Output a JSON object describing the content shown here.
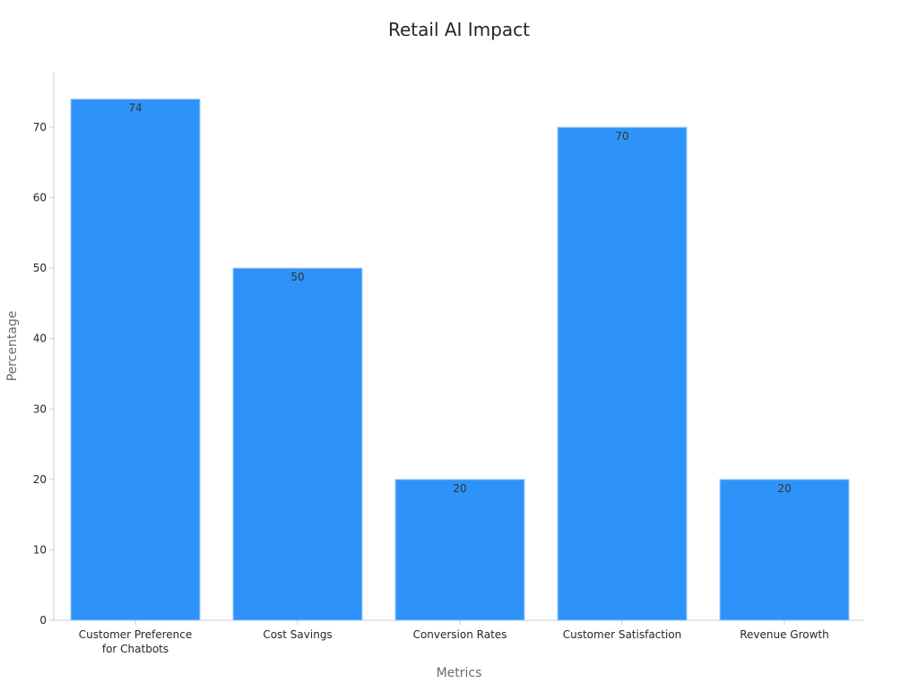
{
  "chart_data": {
    "type": "bar",
    "title": "Retail AI Impact",
    "xlabel": "Metrics",
    "ylabel": "Percentage",
    "categories": [
      [
        "Customer Preference",
        "for Chatbots"
      ],
      [
        "Cost Savings"
      ],
      [
        "Conversion Rates"
      ],
      [
        "Customer Satisfaction"
      ],
      [
        "Revenue Growth"
      ]
    ],
    "values": [
      74,
      50,
      20,
      70,
      20
    ],
    "value_labels": [
      "74",
      "50",
      "20",
      "70",
      "20"
    ],
    "y_ticks": [
      0,
      10,
      20,
      30,
      40,
      50,
      60,
      70
    ],
    "y_tick_labels": [
      "0",
      "10",
      "20",
      "30",
      "40",
      "50",
      "60",
      "70"
    ],
    "ylim": [
      0,
      78
    ],
    "grid": false,
    "legend": "none",
    "colors": {
      "bar": "#2e93f8",
      "bar_edge": "#9fcbf7",
      "axis": "#cccccc",
      "text": "#262626",
      "axis_title": "#6b6b6b"
    }
  }
}
